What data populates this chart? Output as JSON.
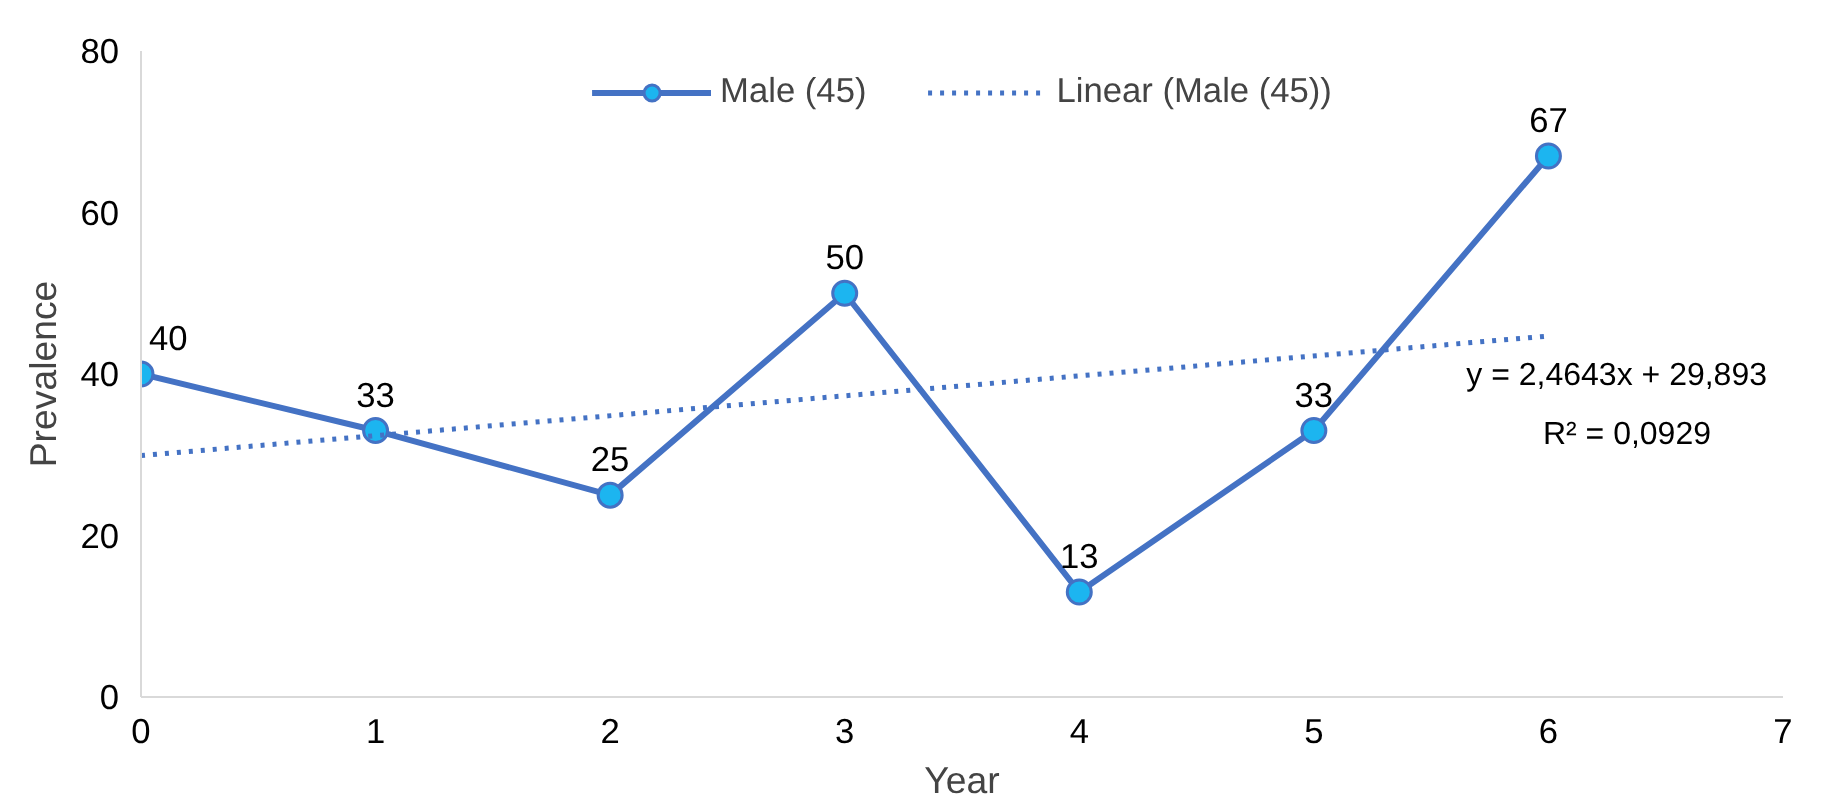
{
  "chart_data": {
    "type": "line",
    "xlabel": "Year",
    "ylabel": "Prevalence",
    "x": [
      0,
      1,
      2,
      3,
      4,
      5,
      6
    ],
    "series": [
      {
        "name": "Male (45)",
        "color": "#4472c4",
        "values": [
          40,
          33,
          25,
          50,
          13,
          33,
          67
        ],
        "marker": "circle",
        "line_style": "solid",
        "data_labels": true
      },
      {
        "name": "Linear (Male (45))",
        "color": "#4472c4",
        "type": "line",
        "x": [
          0,
          6
        ],
        "values": [
          29.9,
          44.7
        ],
        "marker": "none",
        "line_style": "dotted"
      }
    ],
    "annotations": [
      "y = 2,4643x + 29,893",
      "R² = 0,0929"
    ],
    "xlim": [
      0,
      7
    ],
    "xticks": [
      0,
      1,
      2,
      3,
      4,
      5,
      6,
      7
    ],
    "ylim": [
      0,
      80
    ],
    "yticks": [
      0,
      20,
      40,
      60,
      80
    ],
    "grid": false,
    "legend": "top"
  }
}
